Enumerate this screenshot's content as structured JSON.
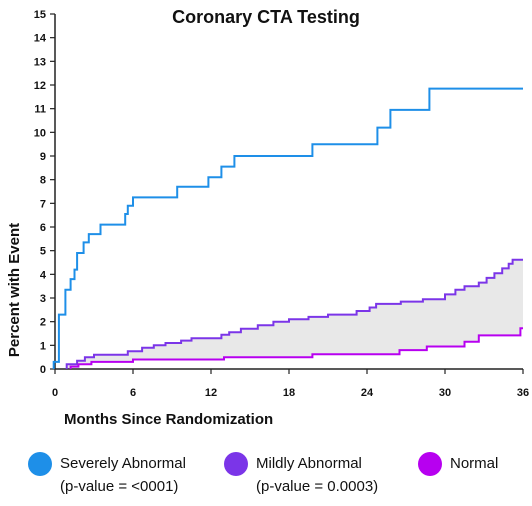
{
  "chart_data": {
    "type": "line",
    "title": "Coronary CTA Testing",
    "xlabel": "Months Since Randomization",
    "ylabel": "Percent with Event",
    "xlim": [
      0,
      36
    ],
    "ylim": [
      0,
      15
    ],
    "x_ticks": [
      0,
      6,
      12,
      18,
      24,
      30,
      36
    ],
    "y_ticks": [
      0,
      1,
      2,
      3,
      4,
      5,
      6,
      7,
      8,
      9,
      10,
      11,
      12,
      13,
      14,
      15
    ],
    "shaded_region": "between Mildly Abnormal and Normal curves",
    "series": [
      {
        "name": "Severely Abnormal",
        "color": "#1E8FE8",
        "style": "step",
        "points": [
          [
            -0.1,
            0
          ],
          [
            -0.1,
            0.3
          ],
          [
            0.3,
            0.3
          ],
          [
            0.3,
            2.3
          ],
          [
            0.8,
            2.3
          ],
          [
            0.8,
            3.35
          ],
          [
            1.2,
            3.35
          ],
          [
            1.2,
            3.8
          ],
          [
            1.5,
            3.8
          ],
          [
            1.5,
            4.2
          ],
          [
            1.7,
            4.2
          ],
          [
            1.7,
            4.9
          ],
          [
            2.2,
            4.9
          ],
          [
            2.2,
            5.35
          ],
          [
            2.6,
            5.35
          ],
          [
            2.6,
            5.7
          ],
          [
            3.5,
            5.7
          ],
          [
            3.5,
            6.1
          ],
          [
            5.4,
            6.1
          ],
          [
            5.4,
            6.55
          ],
          [
            5.6,
            6.55
          ],
          [
            5.6,
            6.9
          ],
          [
            6.0,
            6.9
          ],
          [
            6.0,
            7.25
          ],
          [
            9.4,
            7.25
          ],
          [
            9.4,
            7.7
          ],
          [
            11.8,
            7.7
          ],
          [
            11.8,
            8.1
          ],
          [
            12.8,
            8.1
          ],
          [
            12.8,
            8.55
          ],
          [
            13.8,
            8.55
          ],
          [
            13.8,
            9.0
          ],
          [
            19.8,
            9.0
          ],
          [
            19.8,
            9.5
          ],
          [
            24.8,
            9.5
          ],
          [
            24.8,
            10.2
          ],
          [
            25.8,
            10.2
          ],
          [
            25.8,
            10.95
          ],
          [
            28.8,
            10.95
          ],
          [
            28.8,
            11.85
          ],
          [
            36,
            11.85
          ]
        ]
      },
      {
        "name": "Mildly Abnormal",
        "color": "#7B35E8",
        "style": "step",
        "points": [
          [
            0.9,
            0
          ],
          [
            0.9,
            0.2
          ],
          [
            1.7,
            0.2
          ],
          [
            1.7,
            0.35
          ],
          [
            2.3,
            0.35
          ],
          [
            2.3,
            0.5
          ],
          [
            3.0,
            0.5
          ],
          [
            3.0,
            0.6
          ],
          [
            5.6,
            0.6
          ],
          [
            5.6,
            0.75
          ],
          [
            6.7,
            0.75
          ],
          [
            6.7,
            0.9
          ],
          [
            7.6,
            0.9
          ],
          [
            7.6,
            1.0
          ],
          [
            8.5,
            1.0
          ],
          [
            8.5,
            1.1
          ],
          [
            9.7,
            1.1
          ],
          [
            9.7,
            1.2
          ],
          [
            10.5,
            1.2
          ],
          [
            10.5,
            1.3
          ],
          [
            12.8,
            1.3
          ],
          [
            12.8,
            1.45
          ],
          [
            13.4,
            1.45
          ],
          [
            13.4,
            1.55
          ],
          [
            14.3,
            1.55
          ],
          [
            14.3,
            1.7
          ],
          [
            15.6,
            1.7
          ],
          [
            15.6,
            1.85
          ],
          [
            16.8,
            1.85
          ],
          [
            16.8,
            2.0
          ],
          [
            18.0,
            2.0
          ],
          [
            18.0,
            2.1
          ],
          [
            19.5,
            2.1
          ],
          [
            19.5,
            2.2
          ],
          [
            21.0,
            2.2
          ],
          [
            21.0,
            2.3
          ],
          [
            23.2,
            2.3
          ],
          [
            23.2,
            2.45
          ],
          [
            24.2,
            2.45
          ],
          [
            24.2,
            2.6
          ],
          [
            24.7,
            2.6
          ],
          [
            24.7,
            2.75
          ],
          [
            26.6,
            2.75
          ],
          [
            26.6,
            2.85
          ],
          [
            28.3,
            2.85
          ],
          [
            28.3,
            2.95
          ],
          [
            30.0,
            2.95
          ],
          [
            30.0,
            3.15
          ],
          [
            30.8,
            3.15
          ],
          [
            30.8,
            3.35
          ],
          [
            31.5,
            3.35
          ],
          [
            31.5,
            3.5
          ],
          [
            32.6,
            3.5
          ],
          [
            32.6,
            3.65
          ],
          [
            33.2,
            3.65
          ],
          [
            33.2,
            3.85
          ],
          [
            33.8,
            3.85
          ],
          [
            33.8,
            4.05
          ],
          [
            34.4,
            4.05
          ],
          [
            34.4,
            4.25
          ],
          [
            34.9,
            4.25
          ],
          [
            34.9,
            4.45
          ],
          [
            35.2,
            4.45
          ],
          [
            35.2,
            4.62
          ],
          [
            36,
            4.62
          ]
        ]
      },
      {
        "name": "Normal",
        "color": "#B700F0",
        "style": "step",
        "points": [
          [
            1.2,
            0
          ],
          [
            1.2,
            0.1
          ],
          [
            1.8,
            0.1
          ],
          [
            1.8,
            0.2
          ],
          [
            2.8,
            0.2
          ],
          [
            2.8,
            0.3
          ],
          [
            6.0,
            0.3
          ],
          [
            6.0,
            0.4
          ],
          [
            13.0,
            0.4
          ],
          [
            13.0,
            0.5
          ],
          [
            19.8,
            0.5
          ],
          [
            19.8,
            0.62
          ],
          [
            26.5,
            0.62
          ],
          [
            26.5,
            0.8
          ],
          [
            28.6,
            0.8
          ],
          [
            28.6,
            0.95
          ],
          [
            31.5,
            0.95
          ],
          [
            31.5,
            1.15
          ],
          [
            32.6,
            1.15
          ],
          [
            32.6,
            1.42
          ],
          [
            35.8,
            1.42
          ],
          [
            35.8,
            1.72
          ],
          [
            36,
            1.72
          ]
        ]
      }
    ]
  },
  "legend": [
    {
      "label": "Severely Abnormal",
      "sub": "(p-value = <0001)",
      "color": "#1E8FE8"
    },
    {
      "label": "Mildly Abnormal",
      "sub": "(p-value = 0.0003)",
      "color": "#7B35E8"
    },
    {
      "label": "Normal",
      "sub": "",
      "color": "#B700F0"
    }
  ]
}
